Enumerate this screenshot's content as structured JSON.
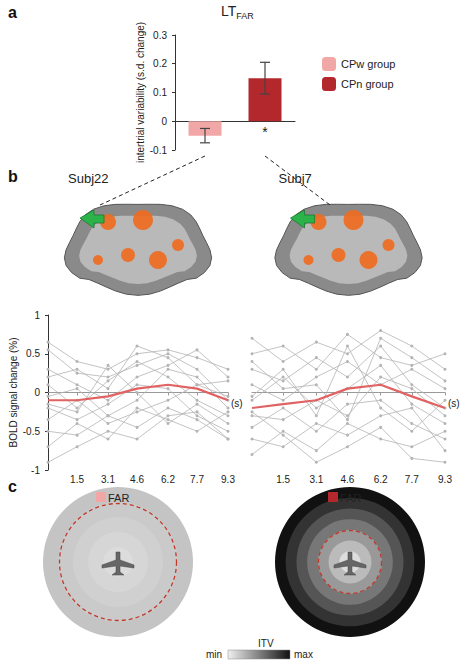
{
  "panel_labels": [
    "a",
    "b",
    "c"
  ],
  "chart_data": [
    {
      "type": "bar",
      "title": "LT",
      "subtitle": "FAR",
      "y_label": "intertrial variability (s.d. change)",
      "categories": [
        null,
        null
      ],
      "series": [
        {
          "name": "CPw group",
          "color": "#f2a7a7",
          "values": [
            -0.05,
            null
          ],
          "errors": [
            0.025,
            null
          ]
        },
        {
          "name": "CPn group",
          "color": "#b3282d",
          "values": [
            null,
            0.15
          ],
          "errors": [
            null,
            0.055
          ],
          "annotation": "*"
        }
      ],
      "ylim": [
        -0.1,
        0.3
      ],
      "yticks": [
        -0.1,
        0,
        0.1,
        0.2,
        0.3
      ],
      "tick_labels": "y",
      "legend": "right",
      "grid": false
    },
    {
      "type": "line",
      "title": "Subj22",
      "y_label": "BOLD signal change (%)",
      "x_label": "(s)",
      "x": [
        0,
        1.5,
        3.1,
        4.6,
        6.2,
        7.7,
        9.3
      ],
      "xlim": [
        0,
        9.3
      ],
      "xticks": [
        1.5,
        3.1,
        4.6,
        6.2,
        7.7,
        9.3
      ],
      "ylim": [
        -1,
        1
      ],
      "yticks": [
        -1,
        -0.5,
        0,
        0.5,
        1
      ],
      "grid": false,
      "series": [
        {
          "color": "#b4b4b4",
          "marker": "circle",
          "values": [
            0.65,
            0.4,
            0.3,
            0.5,
            0.55,
            0.45,
            0.3
          ]
        },
        {
          "color": "#b4b4b4",
          "marker": "circle",
          "values": [
            0.55,
            0.25,
            0.2,
            0.35,
            0.5,
            0.3,
            -0.1
          ]
        },
        {
          "color": "#b4b4b4",
          "marker": "circle",
          "values": [
            0.3,
            0.1,
            -0.1,
            0.2,
            0.35,
            0.55,
            0.2
          ]
        },
        {
          "color": "#b4b4b4",
          "marker": "circle",
          "values": [
            0.1,
            -0.2,
            0.15,
            0.4,
            0.2,
            -0.1,
            -0.3
          ]
        },
        {
          "color": "#b4b4b4",
          "marker": "circle",
          "values": [
            -0.05,
            0.05,
            -0.3,
            -0.1,
            0.3,
            0.2,
            -0.2
          ]
        },
        {
          "color": "#b4b4b4",
          "marker": "circle",
          "values": [
            -0.2,
            -0.35,
            -0.15,
            0.1,
            0.05,
            -0.3,
            -0.5
          ]
        },
        {
          "color": "#b4b4b4",
          "marker": "circle",
          "values": [
            -0.35,
            -0.1,
            -0.4,
            -0.25,
            -0.1,
            0.1,
            -0.05
          ]
        },
        {
          "color": "#b4b4b4",
          "marker": "circle",
          "values": [
            -0.5,
            -0.55,
            -0.3,
            -0.45,
            -0.2,
            -0.35,
            -0.6
          ]
        },
        {
          "color": "#b4b4b4",
          "marker": "circle",
          "values": [
            -0.7,
            -0.4,
            -0.6,
            -0.2,
            -0.35,
            -0.5,
            -0.25
          ]
        },
        {
          "color": "#b4b4b4",
          "marker": "circle",
          "values": [
            -0.9,
            -0.7,
            -0.5,
            -0.6,
            -0.3,
            -0.25,
            -0.6
          ]
        },
        {
          "color": "#b4b4b4",
          "marker": "circle",
          "values": [
            0.2,
            0.3,
            0.05,
            0.6,
            0.45,
            0.1,
            0.15
          ]
        },
        {
          "color": "#b4b4b4",
          "marker": "circle",
          "values": [
            -0.15,
            -0.25,
            0.35,
            0,
            -0.4,
            -0.15,
            -0.4
          ]
        },
        {
          "color": "#e06262",
          "marker": "none",
          "values": [
            -0.1,
            -0.1,
            -0.05,
            0.05,
            0.1,
            0.05,
            -0.1
          ]
        }
      ]
    },
    {
      "type": "line",
      "title": "Subj7",
      "x_label": "(s)",
      "x": [
        0,
        1.5,
        3.1,
        4.6,
        6.2,
        7.7,
        9.3
      ],
      "xlim": [
        0,
        9.3
      ],
      "xticks": [
        1.5,
        3.1,
        4.6,
        6.2,
        7.7,
        9.3
      ],
      "ylim": [
        -1,
        1
      ],
      "yticks": [
        -1,
        -0.5,
        0,
        0.5,
        1
      ],
      "grid": false,
      "tick_labels": "x",
      "series": [
        {
          "color": "#b4b4b4",
          "marker": "circle",
          "values": [
            0.7,
            0.4,
            0.65,
            0.5,
            0.8,
            0.6,
            0.3
          ]
        },
        {
          "color": "#b4b4b4",
          "marker": "circle",
          "values": [
            0.5,
            0.6,
            0.3,
            0.75,
            0.45,
            0.35,
            0.5
          ]
        },
        {
          "color": "#b4b4b4",
          "marker": "circle",
          "values": [
            0.3,
            0.15,
            0.45,
            0.2,
            0.6,
            0.1,
            -0.2
          ]
        },
        {
          "color": "#b4b4b4",
          "marker": "circle",
          "values": [
            0.1,
            -0.1,
            0.2,
            0.4,
            0.1,
            0.3,
            0.05
          ]
        },
        {
          "color": "#b4b4b4",
          "marker": "circle",
          "values": [
            -0.1,
            0.2,
            -0.2,
            0.05,
            0.35,
            -0.15,
            -0.4
          ]
        },
        {
          "color": "#b4b4b4",
          "marker": "circle",
          "values": [
            -0.3,
            -0.35,
            -0.1,
            -0.3,
            0.2,
            0.05,
            -0.3
          ]
        },
        {
          "color": "#b4b4b4",
          "marker": "circle",
          "values": [
            -0.45,
            -0.2,
            -0.5,
            -0.15,
            -0.1,
            -0.4,
            -0.6
          ]
        },
        {
          "color": "#b4b4b4",
          "marker": "circle",
          "values": [
            -0.6,
            -0.7,
            -0.4,
            -0.55,
            -0.3,
            -0.2,
            -0.75
          ]
        },
        {
          "color": "#b4b4b4",
          "marker": "circle",
          "values": [
            -0.8,
            -0.5,
            -0.75,
            -0.4,
            -0.6,
            -0.7,
            -0.5
          ]
        },
        {
          "color": "#b4b4b4",
          "marker": "circle",
          "values": [
            -0.25,
            -0.55,
            -0.9,
            -0.7,
            -0.45,
            -0.85,
            -0.9
          ]
        },
        {
          "color": "#b4b4b4",
          "marker": "circle",
          "values": [
            0.4,
            0.05,
            0.1,
            -0.35,
            0.7,
            0.45,
            0.15
          ]
        },
        {
          "color": "#b4b4b4",
          "marker": "circle",
          "values": [
            -0.05,
            0.3,
            -0.3,
            0.6,
            -0.2,
            -0.5,
            -0.1
          ]
        },
        {
          "color": "#e06262",
          "marker": "none",
          "values": [
            -0.2,
            -0.15,
            -0.1,
            0.05,
            0.1,
            -0.05,
            -0.2
          ]
        }
      ]
    }
  ],
  "diagram": {
    "panels": [
      {
        "label": "FAR",
        "color": "#f2a7a7"
      },
      {
        "label": "FAR",
        "color": "#b3282d"
      }
    ],
    "colorbar": {
      "title": "ITV",
      "min_label": "min",
      "max_label": "max"
    }
  }
}
